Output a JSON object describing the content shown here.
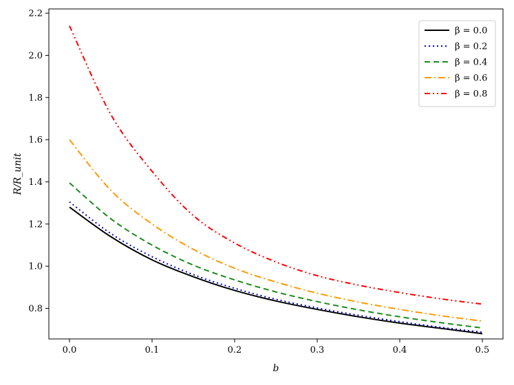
{
  "chart_data": {
    "type": "line",
    "title": "",
    "xlabel": "b",
    "ylabel": "R/R_unit",
    "xlim": [
      -0.025,
      0.525
    ],
    "ylim": [
      0.655,
      2.22
    ],
    "xticks": [
      0.0,
      0.1,
      0.2,
      0.3,
      0.4,
      0.5
    ],
    "xtick_labels": [
      "0.0",
      "0.1",
      "0.2",
      "0.3",
      "0.4",
      "0.5"
    ],
    "yticks": [
      0.8,
      1.0,
      1.2,
      1.4,
      1.6,
      1.8,
      2.0,
      2.2
    ],
    "ytick_labels": [
      "0.8",
      "1.0",
      "1.2",
      "1.4",
      "1.6",
      "1.8",
      "2.0",
      "2.2"
    ],
    "grid": false,
    "legend_position": "top-right",
    "x": [
      0.0,
      0.05,
      0.1,
      0.15,
      0.2,
      0.25,
      0.3,
      0.35,
      0.4,
      0.45,
      0.5
    ],
    "series": [
      {
        "name": "β = 0.0",
        "color": "#000000",
        "style": "solid",
        "values": [
          1.28,
          1.14,
          1.03,
          0.95,
          0.885,
          0.835,
          0.795,
          0.76,
          0.73,
          0.705,
          0.68
        ]
      },
      {
        "name": "β = 0.2",
        "color": "#0000cc",
        "style": "dotted",
        "values": [
          1.305,
          1.155,
          1.045,
          0.96,
          0.895,
          0.843,
          0.802,
          0.767,
          0.737,
          0.71,
          0.687
        ]
      },
      {
        "name": "β = 0.4",
        "color": "#1a8a1a",
        "style": "dashed",
        "values": [
          1.395,
          1.225,
          1.1,
          1.005,
          0.935,
          0.878,
          0.832,
          0.793,
          0.76,
          0.732,
          0.707
        ]
      },
      {
        "name": "β = 0.6",
        "color": "#ff9900",
        "style": "dashdot",
        "values": [
          1.6,
          1.36,
          1.2,
          1.08,
          0.99,
          0.925,
          0.872,
          0.83,
          0.795,
          0.765,
          0.74
        ]
      },
      {
        "name": "β = 0.8",
        "color": "#ff0000",
        "style": "dashdotdot",
        "values": [
          2.14,
          1.72,
          1.45,
          1.24,
          1.11,
          1.02,
          0.955,
          0.91,
          0.875,
          0.845,
          0.82
        ]
      }
    ]
  }
}
